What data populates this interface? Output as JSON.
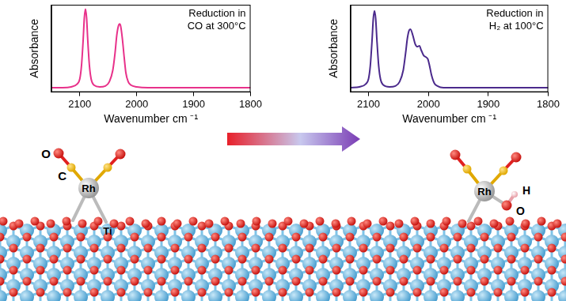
{
  "chart_data": [
    {
      "type": "line",
      "annotation": [
        "Reduction in",
        "CO at 300°C"
      ],
      "x_label": "Wavenumber cm ⁻¹",
      "y_label": "Absorbance",
      "x": [
        2150,
        2130,
        2115,
        2105,
        2100,
        2097,
        2094,
        2092,
        2090,
        2088,
        2086,
        2083,
        2080,
        2075,
        2065,
        2055,
        2048,
        2042,
        2038,
        2035,
        2032,
        2030,
        2028,
        2025,
        2022,
        2019,
        2015,
        2010,
        2000,
        1980,
        1950,
        1900,
        1850,
        1800
      ],
      "values": [
        0.05,
        0.05,
        0.06,
        0.09,
        0.15,
        0.3,
        0.6,
        0.85,
        0.95,
        0.85,
        0.6,
        0.3,
        0.15,
        0.08,
        0.06,
        0.07,
        0.12,
        0.25,
        0.45,
        0.65,
        0.76,
        0.78,
        0.75,
        0.6,
        0.4,
        0.22,
        0.12,
        0.08,
        0.06,
        0.05,
        0.05,
        0.05,
        0.05,
        0.05
      ],
      "color": "#e8318a",
      "xlim": [
        2150,
        1800
      ],
      "xticks": [
        2100,
        2000,
        1900,
        1800
      ],
      "ylim": [
        0,
        1
      ],
      "grid": false,
      "tick_labels": "x"
    },
    {
      "type": "line",
      "annotation": [
        "Reduction in",
        "H₂ at 100°C"
      ],
      "x_label": "Wavenumber cm ⁻¹",
      "y_label": "Absorbance",
      "x": [
        2130,
        2115,
        2105,
        2100,
        2097,
        2094,
        2092,
        2090,
        2088,
        2086,
        2083,
        2080,
        2075,
        2065,
        2055,
        2048,
        2042,
        2038,
        2035,
        2032,
        2030,
        2026,
        2022,
        2018,
        2015,
        2012,
        2008,
        2004,
        2001,
        1998,
        1995,
        1990,
        1985,
        1975,
        1950,
        1900,
        1850,
        1800
      ],
      "values": [
        0.05,
        0.06,
        0.09,
        0.15,
        0.3,
        0.6,
        0.84,
        0.93,
        0.84,
        0.6,
        0.3,
        0.15,
        0.08,
        0.06,
        0.07,
        0.12,
        0.25,
        0.45,
        0.62,
        0.71,
        0.72,
        0.65,
        0.55,
        0.52,
        0.53,
        0.48,
        0.42,
        0.4,
        0.38,
        0.3,
        0.2,
        0.1,
        0.07,
        0.05,
        0.05,
        0.05,
        0.05,
        0.05
      ],
      "color": "#4b2a8c",
      "xlim": [
        2130,
        1800
      ],
      "xticks": [
        2100,
        2000,
        1900,
        1800
      ],
      "ylim": [
        0,
        1
      ],
      "grid": false,
      "tick_labels": "x"
    }
  ],
  "diagram": {
    "left_labels": [
      "O",
      "C",
      "Rh",
      "Ti"
    ],
    "right_labels": [
      "Rh",
      "H",
      "O"
    ]
  }
}
